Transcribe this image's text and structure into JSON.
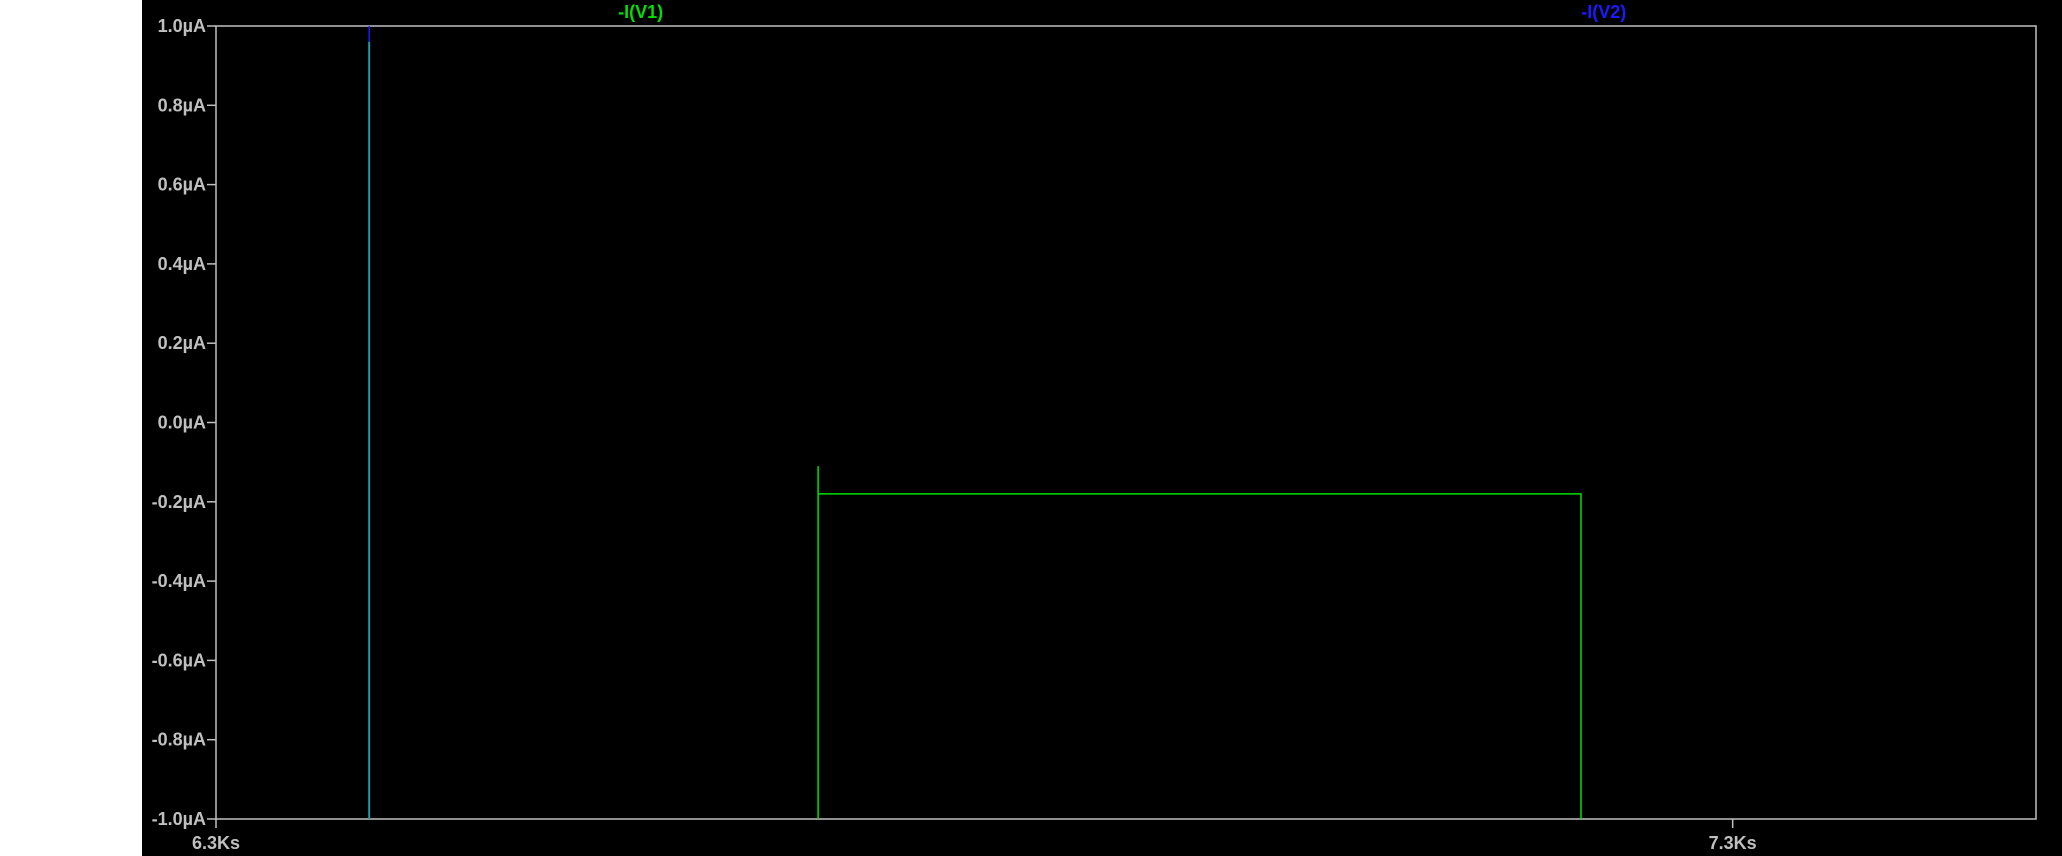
{
  "window": {
    "app": "LTspice waveform viewer"
  },
  "colors": {
    "background": "#000000",
    "axis": "#c0c0c0",
    "grid_text": "#c0c0c0",
    "trace_v1": "#00e000",
    "trace_v2": "#1a1aff",
    "overlap": "#1fa0b0"
  },
  "chart_data": {
    "type": "line",
    "title": "",
    "xlabel": "",
    "ylabel": "",
    "x_unit": "s",
    "y_unit": "A",
    "xlim": [
      6300,
      7500
    ],
    "ylim": [
      -1e-06,
      1e-06
    ],
    "grid": false,
    "legend": "top",
    "y_ticks": [
      "1.0µA",
      "0.8µA",
      "0.6µA",
      "0.4µA",
      "0.2µA",
      "0.0µA",
      "-0.2µA",
      "-0.4µA",
      "-0.6µA",
      "-0.8µA",
      "-1.0µA"
    ],
    "y_tick_values": [
      1e-06,
      8e-07,
      6e-07,
      4e-07,
      2e-07,
      0.0,
      -2e-07,
      -4e-07,
      -6e-07,
      -8e-07,
      -1e-06
    ],
    "x_ticks": [
      "6.3Ks",
      "7.3Ks"
    ],
    "x_tick_values": [
      6300,
      7300
    ],
    "series": [
      {
        "name": "-I(V1)",
        "color": "#00e000",
        "x": [
          6401,
          6401,
          6697,
          6697,
          6697,
          7200,
          7200
        ],
        "y": [
          -1e-06,
          9.6e-07,
          -1e-06,
          -1.1e-07,
          -1.8e-07,
          -1.8e-07,
          -1e-06
        ]
      },
      {
        "name": "-I(V2)",
        "color": "#1a1aff",
        "x": [
          6401,
          6401
        ],
        "y": [
          -1e-06,
          1e-06
        ]
      }
    ]
  }
}
